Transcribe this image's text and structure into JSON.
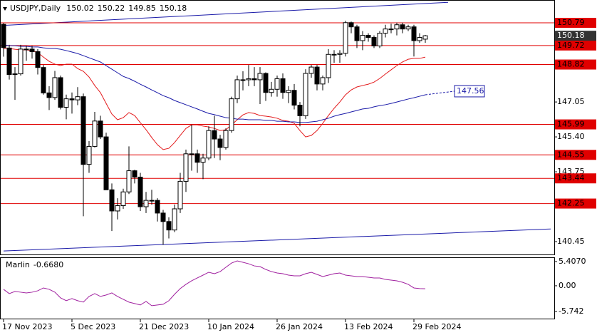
{
  "chart_data": {
    "type": "candlestick",
    "title": "USDJPY,Daily",
    "categories": [
      "17 Nov 2023",
      null,
      null,
      null,
      null,
      null,
      null,
      null,
      null,
      null,
      null,
      null,
      "5 Dec 2023",
      null,
      null,
      null,
      null,
      null,
      null,
      null,
      null,
      null,
      null,
      null,
      "21 Dec 2023",
      null,
      null,
      null,
      null,
      null,
      null,
      null,
      null,
      null,
      null,
      null,
      "10 Jan 2024",
      null,
      null,
      null,
      null,
      null,
      null,
      null,
      null,
      null,
      null,
      null,
      "26 Jan 2024",
      null,
      null,
      null,
      null,
      null,
      null,
      null,
      null,
      null,
      null,
      null,
      "13 Feb 2024",
      null,
      null,
      null,
      null,
      null,
      null,
      null,
      null,
      null,
      null,
      null,
      "29 Feb 2024",
      null,
      null
    ],
    "ohlc": [
      [
        150.72,
        150.78,
        149.19,
        149.62
      ],
      [
        149.6,
        149.75,
        148.11,
        148.35
      ],
      [
        148.35,
        148.7,
        147.15,
        148.38
      ],
      [
        148.38,
        149.75,
        148.3,
        149.55
      ],
      [
        149.55,
        149.7,
        149.0,
        149.55
      ],
      [
        149.55,
        149.7,
        149.1,
        149.43
      ],
      [
        149.43,
        149.55,
        148.35,
        148.68
      ],
      [
        148.68,
        148.8,
        147.4,
        147.48
      ],
      [
        147.48,
        147.8,
        146.67,
        147.26
      ],
      [
        147.26,
        148.52,
        147.15,
        148.2
      ],
      [
        148.2,
        148.3,
        146.7,
        146.8
      ],
      [
        146.8,
        147.4,
        146.23,
        147.2
      ],
      [
        147.2,
        147.5,
        146.5,
        147.15
      ],
      [
        147.15,
        147.75,
        146.9,
        147.3
      ],
      [
        147.3,
        147.45,
        141.65,
        144.1
      ],
      [
        144.1,
        145.2,
        143.7,
        144.95
      ],
      [
        144.95,
        146.58,
        144.9,
        146.15
      ],
      [
        146.15,
        146.4,
        145.3,
        145.4
      ],
      [
        145.4,
        145.6,
        142.9,
        142.9
      ],
      [
        142.9,
        143.2,
        140.95,
        141.9
      ],
      [
        141.9,
        142.5,
        141.5,
        142.15
      ],
      [
        142.15,
        142.95,
        142.0,
        142.8
      ],
      [
        142.8,
        144.95,
        142.7,
        143.8
      ],
      [
        143.8,
        143.85,
        143.2,
        143.5
      ],
      [
        143.5,
        143.7,
        141.9,
        142.1
      ],
      [
        142.1,
        142.8,
        141.8,
        142.4
      ],
      [
        142.4,
        142.9,
        142.2,
        142.4
      ],
      [
        142.4,
        142.5,
        141.4,
        141.8
      ],
      [
        141.8,
        141.95,
        140.3,
        141.4
      ],
      [
        141.4,
        141.6,
        140.6,
        141.0
      ],
      [
        141.0,
        142.2,
        140.9,
        142.0
      ],
      [
        142.0,
        143.7,
        141.8,
        143.3
      ],
      [
        143.3,
        144.8,
        142.8,
        144.6
      ],
      [
        144.6,
        145.98,
        143.8,
        144.6
      ],
      [
        144.6,
        144.8,
        143.7,
        144.2
      ],
      [
        144.2,
        144.6,
        143.4,
        144.4
      ],
      [
        144.4,
        145.9,
        144.3,
        145.7
      ],
      [
        145.7,
        146.4,
        144.4,
        145.3
      ],
      [
        145.3,
        145.5,
        144.3,
        144.9
      ],
      [
        144.9,
        145.8,
        144.8,
        145.7
      ],
      [
        145.7,
        147.3,
        145.6,
        147.2
      ],
      [
        147.2,
        148.3,
        147.0,
        148.1
      ],
      [
        148.1,
        148.5,
        147.6,
        148.1
      ],
      [
        148.1,
        148.8,
        147.8,
        148.15
      ],
      [
        148.15,
        148.7,
        147.8,
        148.1
      ],
      [
        148.1,
        148.7,
        146.95,
        148.4
      ],
      [
        148.4,
        148.45,
        147.1,
        147.5
      ],
      [
        147.5,
        148.0,
        147.3,
        147.65
      ],
      [
        147.65,
        148.3,
        147.3,
        148.15
      ],
      [
        148.15,
        148.4,
        147.2,
        147.5
      ],
      [
        147.5,
        147.8,
        147.0,
        147.6
      ],
      [
        147.6,
        147.9,
        146.7,
        146.9
      ],
      [
        146.9,
        147.05,
        145.9,
        146.4
      ],
      [
        146.4,
        148.6,
        146.25,
        148.4
      ],
      [
        148.4,
        148.8,
        148.2,
        148.7
      ],
      [
        148.7,
        148.8,
        147.6,
        147.9
      ],
      [
        147.9,
        148.3,
        147.6,
        148.2
      ],
      [
        148.2,
        149.55,
        147.95,
        149.3
      ],
      [
        149.3,
        149.5,
        148.9,
        149.3
      ],
      [
        149.3,
        149.5,
        148.9,
        149.35
      ],
      [
        149.35,
        150.89,
        149.2,
        150.8
      ],
      [
        150.8,
        150.85,
        150.3,
        150.6
      ],
      [
        150.6,
        150.7,
        149.6,
        149.95
      ],
      [
        149.95,
        150.4,
        149.5,
        150.2
      ],
      [
        150.2,
        150.3,
        149.9,
        150.1
      ],
      [
        150.1,
        150.2,
        149.6,
        149.7
      ],
      [
        149.7,
        150.4,
        149.6,
        150.3
      ],
      [
        150.3,
        150.7,
        150.1,
        150.5
      ],
      [
        150.5,
        150.75,
        150.3,
        150.5
      ],
      [
        150.5,
        150.8,
        150.2,
        150.7
      ],
      [
        150.7,
        150.8,
        150.3,
        150.5
      ],
      [
        150.5,
        150.7,
        150.4,
        150.6
      ],
      [
        150.6,
        150.7,
        149.2,
        149.95
      ],
      [
        149.95,
        150.3,
        149.85,
        150.1
      ],
      [
        150.02,
        150.22,
        149.85,
        150.18
      ]
    ],
    "up_color": "#ffffff",
    "down_color": "#000000",
    "series": [
      {
        "color": "#e31a1c",
        "values": [
          149.58,
          149.58,
          149.54,
          149.51,
          149.51,
          149.48,
          149.38,
          149.17,
          148.97,
          148.84,
          148.77,
          148.84,
          148.84,
          148.63,
          148.5,
          148.23,
          147.83,
          147.49,
          146.98,
          146.48,
          146.21,
          146.31,
          146.55,
          146.41,
          146.07,
          145.74,
          145.37,
          145.03,
          144.8,
          144.86,
          145.13,
          145.47,
          145.8,
          145.97,
          145.97,
          145.91,
          145.87,
          145.8,
          145.7,
          145.74,
          145.97,
          146.21,
          146.44,
          146.55,
          146.51,
          146.41,
          146.38,
          146.34,
          146.28,
          146.18,
          146.14,
          146.04,
          145.7,
          145.4,
          145.47,
          145.7,
          146.04,
          146.41,
          146.75,
          147.05,
          147.39,
          147.62,
          147.76,
          147.83,
          147.89,
          147.99,
          148.16,
          148.37,
          148.57,
          148.77,
          148.94,
          149.07,
          149.11,
          149.11,
          149.17
        ]
      },
      {
        "color": "#1a1aa8",
        "values": [
          149.75,
          149.71,
          149.71,
          149.68,
          149.68,
          149.65,
          149.65,
          149.61,
          149.58,
          149.58,
          149.54,
          149.48,
          149.41,
          149.34,
          149.24,
          149.14,
          149.04,
          148.94,
          148.77,
          148.6,
          148.43,
          148.26,
          148.16,
          148.03,
          147.89,
          147.76,
          147.62,
          147.49,
          147.35,
          147.25,
          147.12,
          147.02,
          146.92,
          146.82,
          146.72,
          146.61,
          146.51,
          146.45,
          146.38,
          146.31,
          146.28,
          146.24,
          146.24,
          146.21,
          146.21,
          146.21,
          146.18,
          146.18,
          146.14,
          146.14,
          146.11,
          146.11,
          146.08,
          146.08,
          146.11,
          146.14,
          146.21,
          146.28,
          146.38,
          146.45,
          146.51,
          146.58,
          146.65,
          146.72,
          146.75,
          146.82,
          146.88,
          146.92,
          146.98,
          147.05,
          147.12,
          147.19,
          147.25,
          147.32,
          147.39
        ]
      }
    ],
    "projection": 147.56,
    "levels": [
      150.79,
      149.72,
      148.82,
      145.99,
      144.55,
      143.44,
      142.25
    ],
    "level_color": "#e00000",
    "trendlines": [
      {
        "color": "#1a1aa8",
        "x": [
          0,
          78
        ],
        "y": [
          150.67,
          151.76
        ]
      },
      {
        "color": "#1a1aa8",
        "x": [
          0,
          96
        ],
        "y": [
          140.01,
          141.05
        ]
      }
    ],
    "ylim": [
      139.81,
      151.87
    ],
    "yticks": [
      140.45,
      143.75,
      {
        "value": 145.4,
        "label": "145.40"
      },
      147.05
    ],
    "grid": false,
    "indicator": {
      "type": "line",
      "name": "Marlin",
      "color": "#a0209f",
      "value_label": "-0.6680",
      "values": [
        -0.79,
        -1.75,
        -1.27,
        -1.43,
        -1.59,
        -1.43,
        -1.11,
        -0.48,
        -0.79,
        -1.43,
        -2.7,
        -3.33,
        -2.86,
        -3.33,
        -3.65,
        -2.38,
        -1.75,
        -2.38,
        -2.06,
        -1.59,
        -2.38,
        -3.02,
        -3.65,
        -3.97,
        -4.29,
        -3.49,
        -4.44,
        -4.29,
        -4.13,
        -3.33,
        -1.9,
        -0.63,
        0.32,
        1.11,
        1.75,
        2.38,
        3.02,
        2.7,
        3.17,
        4.13,
        5.08,
        5.56,
        5.24,
        4.92,
        4.44,
        4.29,
        3.65,
        3.17,
        2.86,
        2.7,
        2.38,
        2.22,
        2.22,
        2.7,
        3.02,
        2.54,
        2.06,
        2.38,
        2.7,
        2.86,
        2.38,
        2.22,
        2.06,
        2.06,
        1.9,
        1.75,
        1.75,
        1.43,
        1.27,
        1.11,
        0.79,
        0.32,
        -0.48,
        -0.63,
        -0.668
      ],
      "ylim": [
        -7.49,
        6.52
      ],
      "yticks": [
        {
          "value": 5.407,
          "label": "5.4070"
        },
        {
          "value": 0,
          "label": "0.00"
        },
        -5.742
      ]
    }
  }
}
